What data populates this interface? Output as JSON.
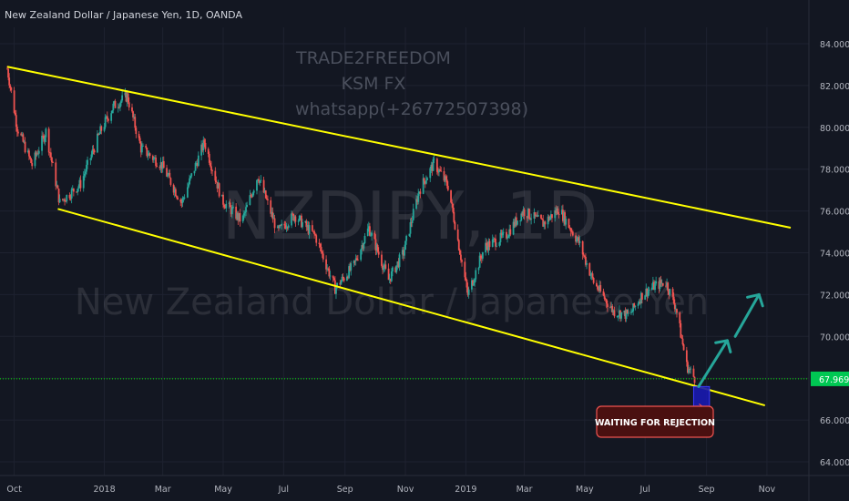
{
  "header": {
    "title": "New Zealand Dollar / Japanese Yen, 1D, OANDA"
  },
  "watermark": {
    "symbol": "NZDJPY, 1D",
    "name": "New Zealand Dollar / Japanese Yen"
  },
  "author_text": [
    "TRADE2FREEDOM",
    "KSM FX",
    "whatsapp(+26772507398)"
  ],
  "colors": {
    "background": "#131722",
    "up": "#26a69a",
    "down": "#ef5350",
    "channel": "#ffff00",
    "arrow": "#26a69a",
    "price_line": "#00e600",
    "label_box": "#4a1010"
  },
  "annotation": {
    "text": "WAITING FOR REJECTION"
  },
  "chart_data": {
    "type": "candlestick",
    "xaxis_labels": [
      "Oct",
      "2018",
      "Mar",
      "May",
      "Jul",
      "Sep",
      "Nov",
      "2019",
      "Mar",
      "May",
      "Jul",
      "Sep",
      "Nov"
    ],
    "yaxis_labels": [
      "84.000",
      "82.000",
      "80.000",
      "78.000",
      "76.000",
      "74.000",
      "72.000",
      "70.000",
      "66.000",
      "64.000"
    ],
    "ylim": [
      63.6,
      85.0
    ],
    "current_price": "67.969",
    "price_path": [
      [
        "2017-09-25",
        82.8
      ],
      [
        "2017-10-05",
        80.0
      ],
      [
        "2017-10-20",
        78.2
      ],
      [
        "2017-11-03",
        79.8
      ],
      [
        "2017-11-17",
        76.4
      ],
      [
        "2017-12-08",
        77.3
      ],
      [
        "2017-12-28",
        79.8
      ],
      [
        "2018-01-10",
        81.0
      ],
      [
        "2018-01-24",
        81.5
      ],
      [
        "2018-02-07",
        79.0
      ],
      [
        "2018-02-28",
        78.2
      ],
      [
        "2018-03-20",
        76.4
      ],
      [
        "2018-04-12",
        79.3
      ],
      [
        "2018-04-30",
        76.5
      ],
      [
        "2018-05-20",
        75.5
      ],
      [
        "2018-06-05",
        77.7
      ],
      [
        "2018-06-25",
        75.0
      ],
      [
        "2018-07-12",
        75.8
      ],
      [
        "2018-08-02",
        74.8
      ],
      [
        "2018-08-22",
        72.3
      ],
      [
        "2018-09-10",
        73.4
      ],
      [
        "2018-09-25",
        75.2
      ],
      [
        "2018-10-15",
        72.7
      ],
      [
        "2018-10-30",
        74.0
      ],
      [
        "2018-11-15",
        77.0
      ],
      [
        "2018-11-30",
        78.3
      ],
      [
        "2018-12-14",
        77.2
      ],
      [
        "2019-01-03",
        72.0
      ],
      [
        "2019-01-20",
        74.3
      ],
      [
        "2019-02-10",
        74.8
      ],
      [
        "2019-02-28",
        76.0
      ],
      [
        "2019-03-20",
        75.4
      ],
      [
        "2019-04-05",
        76.1
      ],
      [
        "2019-04-25",
        74.5
      ],
      [
        "2019-05-10",
        72.6
      ],
      [
        "2019-05-30",
        71.2
      ],
      [
        "2019-06-15",
        71.0
      ],
      [
        "2019-06-28",
        72.0
      ],
      [
        "2019-07-10",
        72.4
      ],
      [
        "2019-07-22",
        72.6
      ],
      [
        "2019-08-01",
        71.4
      ],
      [
        "2019-08-12",
        68.6
      ],
      [
        "2019-08-20",
        68.0
      ]
    ],
    "channel_upper": [
      [
        "2017-09-25",
        82.9
      ],
      [
        "2019-11-25",
        75.2
      ]
    ],
    "channel_lower": [
      [
        "2017-11-15",
        76.1
      ],
      [
        "2019-10-30",
        66.7
      ]
    ],
    "arrows": [
      [
        [
          "2019-08-24",
          67.6
        ],
        [
          "2019-09-22",
          69.8
        ]
      ],
      [
        [
          "2019-09-30",
          70.0
        ],
        [
          "2019-10-24",
          72.0
        ]
      ]
    ],
    "highlight_box": [
      [
        "2019-08-19",
        66.6
      ],
      [
        "2019-09-04",
        67.6
      ]
    ]
  }
}
